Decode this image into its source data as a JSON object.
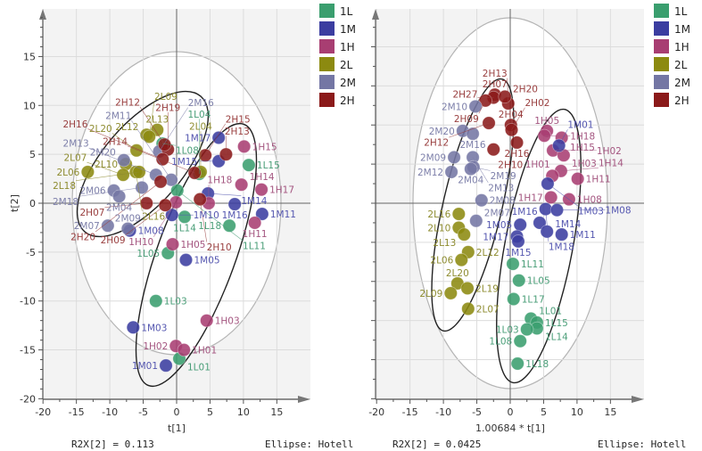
{
  "colors": {
    "1L": "#3a9e6e",
    "1M": "#3b3da0",
    "1H": "#a83e72",
    "2L": "#8c8a10",
    "2M": "#7476a4",
    "2H": "#8b1a1a"
  },
  "label_colors": {
    "1L": "#4a9e78",
    "1M": "#5557b0",
    "1H": "#a45680",
    "2L": "#8e8c30",
    "2M": "#7e80aa",
    "2H": "#9a4040"
  },
  "legend": [
    "1L",
    "1M",
    "1H",
    "2L",
    "2M",
    "2H"
  ],
  "chart_data": [
    {
      "type": "scatter",
      "title": "",
      "xlabel": "t[1]",
      "ylabel": "t[2]",
      "xlim": [
        -20,
        18
      ],
      "ylim": [
        -20,
        19.5
      ],
      "xticks": [
        -20,
        -15,
        -10,
        -5,
        0,
        5,
        10,
        15
      ],
      "yticks": [
        -20,
        -15,
        -10,
        -5,
        0,
        5,
        10,
        15
      ],
      "grid": true,
      "legend_position": "right",
      "footer_left": "R2X[2] = 0.113",
      "footer_right": "Ellipse: Hotell",
      "points": [
        {
          "g": "1L",
          "label": "1L08",
          "x": -2.1,
          "y": 6.1
        },
        {
          "g": "1L",
          "label": "1L15",
          "x": 10.8,
          "y": 3.9
        },
        {
          "g": "1L",
          "label": "1L04",
          "x": 3.4,
          "y": 3.0
        },
        {
          "g": "1L",
          "label": "1L11",
          "x": 0.1,
          "y": 1.3
        },
        {
          "g": "1L",
          "label": "1L14",
          "x": 1.2,
          "y": -1.4
        },
        {
          "g": "1L",
          "label": "1L18",
          "x": 7.9,
          "y": -2.3
        },
        {
          "g": "1L",
          "label": "1L05",
          "x": -1.3,
          "y": -5.1
        },
        {
          "g": "1L",
          "label": "1L03",
          "x": -3.1,
          "y": -10.0
        },
        {
          "g": "1L",
          "label": "1L01",
          "x": 0.4,
          "y": -15.9
        },
        {
          "g": "1M",
          "label": "1M17",
          "x": 6.3,
          "y": 6.7
        },
        {
          "g": "1M",
          "label": "1M15",
          "x": 6.3,
          "y": 4.3
        },
        {
          "g": "1M",
          "label": "1M14",
          "x": 4.7,
          "y": 1.0
        },
        {
          "g": "1M",
          "label": "1M16",
          "x": 8.7,
          "y": -0.1
        },
        {
          "g": "1M",
          "label": "1M11",
          "x": 12.8,
          "y": -1.1
        },
        {
          "g": "1M",
          "label": "1M10",
          "x": -0.7,
          "y": -1.2
        },
        {
          "g": "1M",
          "label": "1M08",
          "x": -7.0,
          "y": -2.8
        },
        {
          "g": "1M",
          "label": "1M05",
          "x": 1.4,
          "y": -5.8
        },
        {
          "g": "1M",
          "label": "1M03",
          "x": -6.5,
          "y": -12.7
        },
        {
          "g": "1M",
          "label": "1M01",
          "x": -1.6,
          "y": -16.6
        },
        {
          "g": "1H",
          "label": "1H15",
          "x": 10.1,
          "y": 5.8
        },
        {
          "g": "1H",
          "label": "1H14",
          "x": 9.7,
          "y": 1.9
        },
        {
          "g": "1H",
          "label": "1H17",
          "x": 12.7,
          "y": 1.4
        },
        {
          "g": "1H",
          "label": "1H18",
          "x": 4.8,
          "y": 0.0
        },
        {
          "g": "1H",
          "label": "1H11",
          "x": 11.7,
          "y": -2.0
        },
        {
          "g": "1H",
          "label": "1H10",
          "x": -0.1,
          "y": 0.1
        },
        {
          "g": "1H",
          "label": "1H05",
          "x": -0.6,
          "y": -4.2
        },
        {
          "g": "1H",
          "label": "1H03",
          "x": 4.5,
          "y": -12.0
        },
        {
          "g": "1H",
          "label": "1H02",
          "x": -0.1,
          "y": -14.6
        },
        {
          "g": "1H",
          "label": "1H01",
          "x": 1.1,
          "y": -15.0
        },
        {
          "g": "2L",
          "label": "2L13",
          "x": -2.9,
          "y": 7.5
        },
        {
          "g": "2L",
          "label": "2L12",
          "x": -4.5,
          "y": 7.0
        },
        {
          "g": "2L",
          "label": "2L09",
          "x": -4.1,
          "y": 6.8
        },
        {
          "g": "2L",
          "label": "2L20",
          "x": -6.0,
          "y": 5.4
        },
        {
          "g": "2L",
          "label": "2L10",
          "x": -7.6,
          "y": 4.0
        },
        {
          "g": "2L",
          "label": "2L06",
          "x": -13.3,
          "y": 3.2
        },
        {
          "g": "2L",
          "label": "2L07",
          "x": -8.0,
          "y": 2.9
        },
        {
          "g": "2L",
          "label": "2L16",
          "x": -6.1,
          "y": 3.2
        },
        {
          "g": "2L",
          "label": "2L18",
          "x": -5.6,
          "y": 3.2
        },
        {
          "g": "2L",
          "label": "2L04",
          "x": 3.6,
          "y": 3.2
        },
        {
          "g": "2M",
          "label": "2M20",
          "x": -7.9,
          "y": 4.4
        },
        {
          "g": "2M",
          "label": "2M16",
          "x": -2.6,
          "y": 5.3
        },
        {
          "g": "2M",
          "label": "2M13",
          "x": -3.1,
          "y": 2.9
        },
        {
          "g": "2M",
          "label": "2M11",
          "x": -0.8,
          "y": 2.4
        },
        {
          "g": "2M",
          "label": "2M18",
          "x": -5.2,
          "y": 1.6
        },
        {
          "g": "2M",
          "label": "2M06",
          "x": -9.4,
          "y": 1.3
        },
        {
          "g": "2M",
          "label": "2M04",
          "x": -8.6,
          "y": 0.7
        },
        {
          "g": "2M",
          "label": "2M07",
          "x": -10.3,
          "y": -2.3
        },
        {
          "g": "2M",
          "label": "2M09",
          "x": -7.3,
          "y": -2.6
        },
        {
          "g": "2H",
          "label": "2H19",
          "x": -1.3,
          "y": 5.5
        },
        {
          "g": "2H",
          "label": "2H12",
          "x": -1.8,
          "y": 6.0
        },
        {
          "g": "2H",
          "label": "2H16",
          "x": -2.1,
          "y": 4.5
        },
        {
          "g": "2H",
          "label": "2H15",
          "x": 4.3,
          "y": 4.9
        },
        {
          "g": "2H",
          "label": "2H13",
          "x": 7.4,
          "y": 5.0
        },
        {
          "g": "2H",
          "label": "2H14",
          "x": 2.7,
          "y": 3.1
        },
        {
          "g": "2H",
          "label": "2H20",
          "x": -2.4,
          "y": 2.2
        },
        {
          "g": "2H",
          "label": "2H10",
          "x": 3.5,
          "y": 0.4
        },
        {
          "g": "2H",
          "label": "2H07",
          "x": -4.5,
          "y": 0.0
        },
        {
          "g": "2H",
          "label": "2H09",
          "x": -1.7,
          "y": -0.2
        }
      ]
    },
    {
      "type": "scatter",
      "title": "",
      "xlabel": "1.00684 * t[1]",
      "ylabel": "",
      "xlim": [
        -20,
        18
      ],
      "ylim": [
        -20,
        19.5
      ],
      "xticks": [
        -20,
        -15,
        -10,
        -5,
        0,
        5,
        10,
        15
      ],
      "yticks": [],
      "grid": true,
      "legend_position": "right",
      "footer_left": "R2X[2] = 0.0425",
      "footer_right": "Ellipse: Hotell",
      "points": [
        {
          "g": "2H",
          "label": "2H07",
          "x": -2.3,
          "y": 11.1
        },
        {
          "g": "2H",
          "label": "2H27",
          "x": -2.5,
          "y": 10.8
        },
        {
          "g": "2H",
          "label": "2H09",
          "x": -3.7,
          "y": 10.5
        },
        {
          "g": "2H",
          "label": "2H13",
          "x": -0.3,
          "y": 10.2
        },
        {
          "g": "2H",
          "label": "2H20",
          "x": -0.8,
          "y": 10.9
        },
        {
          "g": "2H",
          "label": "2H12",
          "x": -3.2,
          "y": 8.2
        },
        {
          "g": "2H",
          "label": "2H04",
          "x": 0.1,
          "y": 8.0
        },
        {
          "g": "2H",
          "label": "2H02",
          "x": 0.2,
          "y": 7.5
        },
        {
          "g": "2H",
          "label": "2H16",
          "x": 1.0,
          "y": 6.2
        },
        {
          "g": "2H",
          "label": "2H10",
          "x": -2.5,
          "y": 5.5
        },
        {
          "g": "2M",
          "label": "2M10",
          "x": -5.2,
          "y": 9.9
        },
        {
          "g": "2M",
          "label": "2M20",
          "x": -7.1,
          "y": 7.4
        },
        {
          "g": "2M",
          "label": "2M16",
          "x": -5.6,
          "y": 7.1
        },
        {
          "g": "2M",
          "label": "2M09",
          "x": -8.4,
          "y": 4.7
        },
        {
          "g": "2M",
          "label": "2M13",
          "x": -5.6,
          "y": 4.7
        },
        {
          "g": "2M",
          "label": "2M19",
          "x": -5.5,
          "y": 3.7
        },
        {
          "g": "2M",
          "label": "2M04",
          "x": -5.9,
          "y": 3.5
        },
        {
          "g": "2M",
          "label": "2M12",
          "x": -8.8,
          "y": 3.2
        },
        {
          "g": "2M",
          "label": "2M08",
          "x": -4.3,
          "y": 0.3
        },
        {
          "g": "2M",
          "label": "2M07",
          "x": -5.1,
          "y": -1.8
        },
        {
          "g": "1H",
          "label": "1H05",
          "x": 5.5,
          "y": 7.4
        },
        {
          "g": "1H",
          "label": "1H18",
          "x": 5.1,
          "y": 6.9
        },
        {
          "g": "1H",
          "label": "1H15",
          "x": 7.7,
          "y": 6.7
        },
        {
          "g": "1H",
          "label": "1H02",
          "x": 6.4,
          "y": 5.4
        },
        {
          "g": "1H",
          "label": "1H03",
          "x": 8.0,
          "y": 4.9
        },
        {
          "g": "1H",
          "label": "1H14",
          "x": 7.6,
          "y": 3.3
        },
        {
          "g": "1H",
          "label": "1H01",
          "x": 6.3,
          "y": 2.8
        },
        {
          "g": "1H",
          "label": "1H11",
          "x": 10.1,
          "y": 2.5
        },
        {
          "g": "1H",
          "label": "1H17",
          "x": 6.1,
          "y": 0.6
        },
        {
          "g": "1H",
          "label": "1H08",
          "x": 8.8,
          "y": 0.4
        },
        {
          "g": "1M",
          "label": "1M01",
          "x": 7.3,
          "y": 5.9
        },
        {
          "g": "1M",
          "label": "1M03",
          "x": 5.6,
          "y": 2.0
        },
        {
          "g": "1M",
          "label": "1M18",
          "x": 5.3,
          "y": -0.6
        },
        {
          "g": "1M",
          "label": "1M08",
          "x": 7.0,
          "y": -0.7
        },
        {
          "g": "1M",
          "label": "1M16",
          "x": 4.4,
          "y": -2.0
        },
        {
          "g": "1M",
          "label": "1M05",
          "x": 1.5,
          "y": -2.2
        },
        {
          "g": "1M",
          "label": "1M14",
          "x": 5.5,
          "y": -2.9
        },
        {
          "g": "1M",
          "label": "1M11",
          "x": 7.7,
          "y": -3.2
        },
        {
          "g": "1M",
          "label": "1M17",
          "x": 1.0,
          "y": -3.4
        },
        {
          "g": "1M",
          "label": "1M15",
          "x": 1.2,
          "y": -3.9
        },
        {
          "g": "2L",
          "label": "2L16",
          "x": -7.7,
          "y": -1.1
        },
        {
          "g": "2L",
          "label": "2L10",
          "x": -7.7,
          "y": -2.5
        },
        {
          "g": "2L",
          "label": "2L13",
          "x": -6.9,
          "y": -3.2
        },
        {
          "g": "2L",
          "label": "2L12",
          "x": -6.3,
          "y": -5.0
        },
        {
          "g": "2L",
          "label": "2L06",
          "x": -7.3,
          "y": -5.8
        },
        {
          "g": "2L",
          "label": "2L20",
          "x": -7.9,
          "y": -8.2
        },
        {
          "g": "2L",
          "label": "2L19",
          "x": -6.4,
          "y": -8.7
        },
        {
          "g": "2L",
          "label": "2L09",
          "x": -8.9,
          "y": -9.2
        },
        {
          "g": "2L",
          "label": "2L07",
          "x": -6.3,
          "y": -10.8
        },
        {
          "g": "1L",
          "label": "1L11",
          "x": 0.4,
          "y": -6.2
        },
        {
          "g": "1L",
          "label": "1L05",
          "x": 1.3,
          "y": -7.9
        },
        {
          "g": "1L",
          "label": "1L17",
          "x": 0.5,
          "y": -9.8
        },
        {
          "g": "1L",
          "label": "1L01",
          "x": 3.1,
          "y": -11.8
        },
        {
          "g": "1L",
          "label": "1L15",
          "x": 4.0,
          "y": -12.2
        },
        {
          "g": "1L",
          "label": "1L14",
          "x": 4.0,
          "y": -12.8
        },
        {
          "g": "1L",
          "label": "1L03",
          "x": 2.5,
          "y": -12.9
        },
        {
          "g": "1L",
          "label": "1L08",
          "x": 1.5,
          "y": -14.1
        },
        {
          "g": "1L",
          "label": "1L18",
          "x": 1.1,
          "y": -16.4
        }
      ]
    }
  ]
}
